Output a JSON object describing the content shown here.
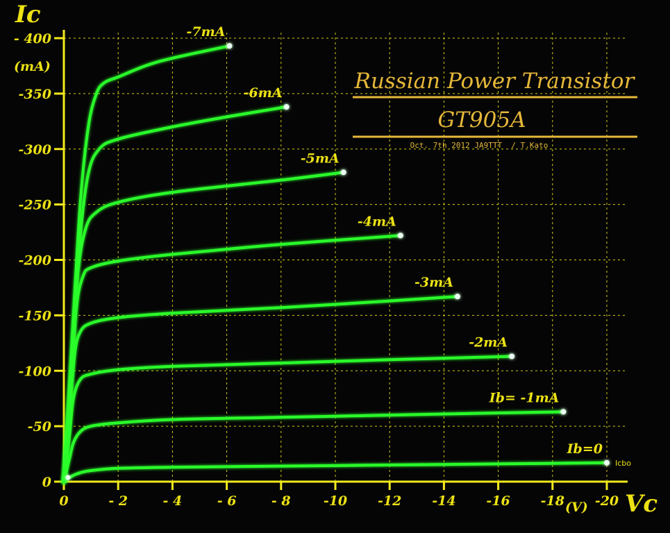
{
  "chart_data": {
    "type": "line",
    "title": "Russian Power Transistor",
    "subtitle": "GT905A",
    "credit": "Oct. 7th 2012 JA9TTT  / T.Kato",
    "ylabel": "Ic",
    "yunit": "(mA)",
    "xlabel": "Vc",
    "xunit": "(V)",
    "xlim": [
      0,
      -20
    ],
    "ylim": [
      0,
      -400
    ],
    "grid": true,
    "xticks": [
      {
        "value": 0,
        "label": "0"
      },
      {
        "value": -2,
        "label": "- 2"
      },
      {
        "value": -4,
        "label": "- 4"
      },
      {
        "value": -6,
        "label": "- 6"
      },
      {
        "value": -8,
        "label": "- 8"
      },
      {
        "value": -10,
        "label": "-10"
      },
      {
        "value": -12,
        "label": "-12"
      },
      {
        "value": -14,
        "label": "-14"
      },
      {
        "value": -16,
        "label": "-16"
      },
      {
        "value": -18,
        "label": "-18"
      },
      {
        "value": -20,
        "label": "-20"
      }
    ],
    "yticks": [
      {
        "value": 0,
        "label": "0"
      },
      {
        "value": -50,
        "label": "-50"
      },
      {
        "value": -100,
        "label": "-100"
      },
      {
        "value": -150,
        "label": "-150"
      },
      {
        "value": -200,
        "label": "-200"
      },
      {
        "value": -250,
        "label": "-250"
      },
      {
        "value": -300,
        "label": "-300"
      },
      {
        "value": -350,
        "label": "-350"
      },
      {
        "value": -400,
        "label": "- 400"
      }
    ],
    "series": [
      {
        "name": "Ib=0",
        "label": "Ib=0",
        "x": [
          0,
          -0.3,
          -0.6,
          -1,
          -2,
          -4,
          -8,
          -12,
          -16,
          -20
        ],
        "y": [
          0,
          -5,
          -8,
          -10,
          -12,
          -13,
          -14,
          -15,
          -16,
          -17
        ]
      },
      {
        "name": "Ib= -1mA",
        "label": "Ib= -1mA",
        "x": [
          0,
          -0.2,
          -0.35,
          -0.6,
          -1,
          -2,
          -4,
          -8,
          -12,
          -16,
          -18.4
        ],
        "y": [
          0,
          -20,
          -35,
          -45,
          -50,
          -53,
          -56,
          -58,
          -60,
          -62,
          -63
        ]
      },
      {
        "name": "-2mA",
        "label": "-2mA",
        "x": [
          0,
          -0.2,
          -0.35,
          -0.6,
          -1,
          -2,
          -4,
          -8,
          -12,
          -16.5
        ],
        "y": [
          0,
          -40,
          -75,
          -92,
          -97,
          -101,
          -104,
          -107,
          -110,
          -113
        ]
      },
      {
        "name": "-3mA",
        "label": "-3mA",
        "x": [
          0,
          -0.2,
          -0.4,
          -0.6,
          -1,
          -2,
          -4,
          -8,
          -12,
          -14.5
        ],
        "y": [
          0,
          -60,
          -115,
          -135,
          -143,
          -148,
          -152,
          -157,
          -163,
          -167
        ]
      },
      {
        "name": "-4mA",
        "label": "-4mA",
        "x": [
          0,
          -0.25,
          -0.45,
          -0.7,
          -1,
          -2,
          -4,
          -8,
          -12.4
        ],
        "y": [
          0,
          -80,
          -155,
          -185,
          -193,
          -199,
          -205,
          -214,
          -222
        ]
      },
      {
        "name": "-5mA",
        "label": "-5mA",
        "x": [
          0,
          -0.25,
          -0.5,
          -0.8,
          -1.2,
          -2,
          -4,
          -8,
          -10.3
        ],
        "y": [
          0,
          -95,
          -185,
          -228,
          -243,
          -252,
          -261,
          -272,
          -279
        ]
      },
      {
        "name": "-6mA",
        "label": "-6mA",
        "x": [
          0,
          -0.3,
          -0.6,
          -0.9,
          -1.3,
          -2,
          -4,
          -6,
          -8.2
        ],
        "y": [
          0,
          -110,
          -220,
          -278,
          -300,
          -309,
          -320,
          -329,
          -338
        ]
      },
      {
        "name": "-7mA",
        "label": "-7mA",
        "x": [
          0,
          -0.3,
          -0.6,
          -0.9,
          -1.2,
          -1.5,
          -2,
          -3,
          -4,
          -6.1
        ],
        "y": [
          0,
          -125,
          -250,
          -320,
          -350,
          -360,
          -365,
          -375,
          -382,
          -393
        ]
      }
    ],
    "annotation": "Icbo",
    "color": "#2bff2b",
    "text_color": "#ece214"
  }
}
